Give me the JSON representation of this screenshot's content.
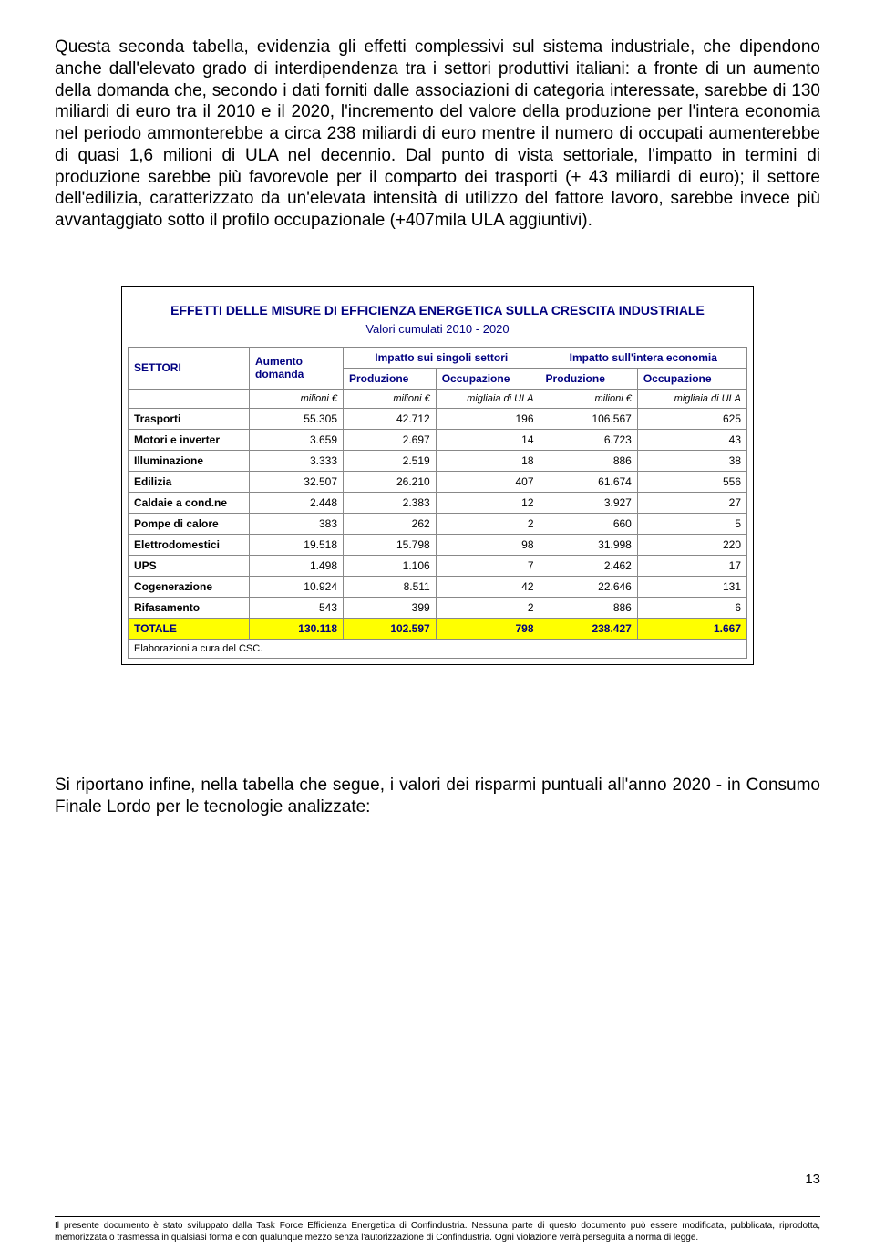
{
  "para1": "Questa seconda tabella, evidenzia gli effetti complessivi sul sistema industriale, che dipendono anche dall'elevato grado di interdipendenza tra i settori produttivi italiani: a fronte di un aumento della domanda che, secondo i dati forniti dalle associazioni di categoria interessate, sarebbe di 130 miliardi di euro tra il 2010 e il 2020, l'incremento del valore della produzione per l'intera economia nel periodo ammonterebbe a circa 238 miliardi di euro mentre il numero di occupati aumenterebbe di quasi 1,6 milioni di ULA nel decennio. Dal punto di vista settoriale, l'impatto in termini di produzione sarebbe più favorevole per il comparto dei trasporti (+ 43 miliardi di euro); il settore dell'edilizia, caratterizzato da un'elevata intensità di utilizzo del fattore lavoro, sarebbe invece più avvantaggiato sotto il profilo occupazionale (+407mila ULA aggiuntivi).",
  "para2": "Si riportano infine, nella tabella che segue, i valori dei risparmi puntuali all'anno 2020  - in Consumo Finale Lordo per le tecnologie analizzate:",
  "pagenum": "13",
  "disclaimer": "Il presente documento è stato sviluppato dalla Task Force Efficienza Energetica di Confindustria. Nessuna parte di questo documento può essere modificata, pubblicata, riprodotta, memorizzata o trasmessa in qualsiasi forma e con qualunque mezzo senza l'autorizzazione di Confindustria. Ogni violazione verrà perseguita a norma di legge.",
  "table": {
    "title": "EFFETTI DELLE MISURE DI EFFICIENZA ENERGETICA SULLA CRESCITA INDUSTRIALE",
    "subtitle": "Valori cumulati 2010 - 2020",
    "col_sector": "SETTORI",
    "col_aumento": "Aumento domanda",
    "group1": "Impatto sui singoli settori",
    "group2": "Impatto sull'intera economia",
    "sub_prod": "Produzione",
    "sub_occ": "Occupazione",
    "unit_mln": "milioni €",
    "unit_ula": "migliaia di ULA",
    "rows": [
      {
        "label": "Trasporti",
        "c": [
          "55.305",
          "42.712",
          "196",
          "106.567",
          "625"
        ]
      },
      {
        "label": "Motori e inverter",
        "c": [
          "3.659",
          "2.697",
          "14",
          "6.723",
          "43"
        ]
      },
      {
        "label": "Illuminazione",
        "c": [
          "3.333",
          "2.519",
          "18",
          "886",
          "38"
        ]
      },
      {
        "label": "Edilizia",
        "c": [
          "32.507",
          "26.210",
          "407",
          "61.674",
          "556"
        ]
      },
      {
        "label": "Caldaie a cond.ne",
        "c": [
          "2.448",
          "2.383",
          "12",
          "3.927",
          "27"
        ]
      },
      {
        "label": "Pompe di calore",
        "c": [
          "383",
          "262",
          "2",
          "660",
          "5"
        ]
      },
      {
        "label": "Elettrodomestici",
        "c": [
          "19.518",
          "15.798",
          "98",
          "31.998",
          "220"
        ]
      },
      {
        "label": "UPS",
        "c": [
          "1.498",
          "1.106",
          "7",
          "2.462",
          "17"
        ]
      },
      {
        "label": "Cogenerazione",
        "c": [
          "10.924",
          "8.511",
          "42",
          "22.646",
          "131"
        ]
      },
      {
        "label": "Rifasamento",
        "c": [
          "543",
          "399",
          "2",
          "886",
          "6"
        ]
      }
    ],
    "total": {
      "label": "TOTALE",
      "c": [
        "130.118",
        "102.597",
        "798",
        "238.427",
        "1.667"
      ]
    },
    "footnote": "Elaborazioni a cura del CSC."
  }
}
